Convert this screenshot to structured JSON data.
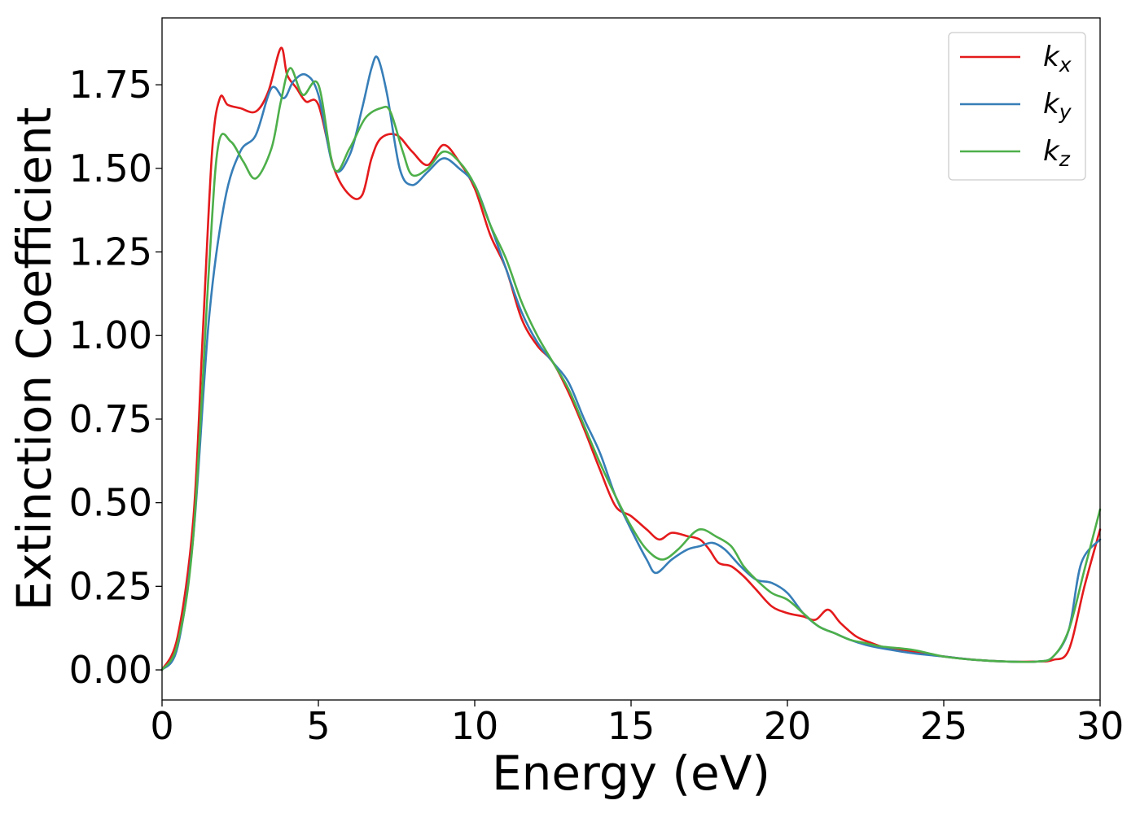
{
  "chart_data": {
    "type": "line",
    "xlabel": "Energy (eV)",
    "ylabel": "Extinction Coefficient",
    "xlim": [
      0,
      30
    ],
    "ylim": [
      -0.09,
      1.95
    ],
    "xticks": [
      0,
      5,
      10,
      15,
      20,
      25,
      30
    ],
    "xtick_labels": [
      "0",
      "5",
      "10",
      "15",
      "20",
      "25",
      "30"
    ],
    "yticks": [
      0.0,
      0.25,
      0.5,
      0.75,
      1.0,
      1.25,
      1.5,
      1.75
    ],
    "ytick_labels": [
      "0.00",
      "0.25",
      "0.50",
      "0.75",
      "1.00",
      "1.25",
      "1.50",
      "1.75"
    ],
    "grid": false,
    "legend_position": "top-right",
    "series": [
      {
        "name": "k_x",
        "label_base": "k",
        "label_sub": "x",
        "color": "#e41a1c",
        "x": [
          0,
          0.5,
          1.0,
          1.3,
          1.6,
          1.85,
          2.1,
          2.5,
          3.0,
          3.4,
          3.8,
          4.0,
          4.3,
          4.6,
          5.0,
          5.5,
          6.0,
          6.4,
          6.7,
          7.0,
          7.5,
          8.0,
          8.5,
          9.0,
          9.5,
          10.0,
          10.5,
          11.0,
          11.5,
          12.0,
          12.5,
          13.0,
          13.5,
          14.0,
          14.5,
          15.0,
          15.5,
          15.9,
          16.3,
          16.8,
          17.2,
          17.5,
          17.8,
          18.2,
          18.6,
          19.0,
          19.5,
          20.0,
          20.5,
          20.9,
          21.3,
          21.7,
          22.2,
          22.7,
          23.2,
          24.0,
          25.0,
          26.0,
          27.0,
          28.0,
          28.5,
          29.0,
          29.5,
          30.0
        ],
        "y": [
          0.0,
          0.1,
          0.45,
          1.0,
          1.55,
          1.71,
          1.69,
          1.68,
          1.67,
          1.73,
          1.86,
          1.78,
          1.74,
          1.7,
          1.69,
          1.5,
          1.42,
          1.42,
          1.53,
          1.59,
          1.6,
          1.55,
          1.51,
          1.57,
          1.52,
          1.44,
          1.3,
          1.2,
          1.05,
          0.97,
          0.92,
          0.83,
          0.72,
          0.6,
          0.49,
          0.46,
          0.42,
          0.39,
          0.41,
          0.4,
          0.39,
          0.36,
          0.32,
          0.31,
          0.28,
          0.24,
          0.19,
          0.17,
          0.16,
          0.15,
          0.18,
          0.14,
          0.1,
          0.08,
          0.065,
          0.055,
          0.04,
          0.03,
          0.025,
          0.025,
          0.03,
          0.06,
          0.25,
          0.42
        ]
      },
      {
        "name": "k_y",
        "label_base": "k",
        "label_sub": "y",
        "color": "#377eb8",
        "x": [
          0,
          0.5,
          1.0,
          1.5,
          2.0,
          2.5,
          3.0,
          3.5,
          3.9,
          4.2,
          4.6,
          5.0,
          5.5,
          6.0,
          6.4,
          6.7,
          6.9,
          7.2,
          7.6,
          8.0,
          8.5,
          9.0,
          9.5,
          10.0,
          10.5,
          11.0,
          11.5,
          12.0,
          12.5,
          13.0,
          13.5,
          14.0,
          14.5,
          15.0,
          15.5,
          15.8,
          16.3,
          16.8,
          17.2,
          17.6,
          18.0,
          18.5,
          19.0,
          19.5,
          20.0,
          20.5,
          21.0,
          21.5,
          22.0,
          22.5,
          23.0,
          24.0,
          25.0,
          26.0,
          27.0,
          28.0,
          28.5,
          29.0,
          29.4,
          30.0
        ],
        "y": [
          0.0,
          0.07,
          0.4,
          1.05,
          1.4,
          1.55,
          1.6,
          1.74,
          1.71,
          1.76,
          1.78,
          1.72,
          1.5,
          1.54,
          1.68,
          1.8,
          1.83,
          1.72,
          1.5,
          1.45,
          1.49,
          1.53,
          1.5,
          1.45,
          1.33,
          1.2,
          1.07,
          0.98,
          0.92,
          0.86,
          0.75,
          0.65,
          0.52,
          0.42,
          0.33,
          0.29,
          0.33,
          0.36,
          0.37,
          0.38,
          0.36,
          0.31,
          0.27,
          0.26,
          0.23,
          0.17,
          0.13,
          0.11,
          0.09,
          0.075,
          0.065,
          0.05,
          0.04,
          0.03,
          0.025,
          0.025,
          0.04,
          0.12,
          0.32,
          0.39
        ]
      },
      {
        "name": "k_z",
        "label_base": "k",
        "label_sub": "z",
        "color": "#4daf4a",
        "x": [
          0,
          0.5,
          1.0,
          1.5,
          1.8,
          2.2,
          2.6,
          3.0,
          3.5,
          3.8,
          4.1,
          4.5,
          5.0,
          5.5,
          6.0,
          6.5,
          7.0,
          7.3,
          7.7,
          8.0,
          8.5,
          9.0,
          9.5,
          10.0,
          10.5,
          11.0,
          11.5,
          12.0,
          12.5,
          13.0,
          13.5,
          14.0,
          14.5,
          15.0,
          15.5,
          16.0,
          16.5,
          17.0,
          17.3,
          17.7,
          18.2,
          18.6,
          19.0,
          19.5,
          20.0,
          20.5,
          21.0,
          21.5,
          22.0,
          22.5,
          23.0,
          24.0,
          25.0,
          26.0,
          27.0,
          28.0,
          28.5,
          29.0,
          29.5,
          30.0
        ],
        "y": [
          0.0,
          0.08,
          0.4,
          1.2,
          1.57,
          1.58,
          1.52,
          1.47,
          1.56,
          1.7,
          1.8,
          1.72,
          1.75,
          1.5,
          1.56,
          1.65,
          1.68,
          1.67,
          1.55,
          1.48,
          1.5,
          1.55,
          1.52,
          1.45,
          1.33,
          1.23,
          1.1,
          1.0,
          0.92,
          0.84,
          0.73,
          0.62,
          0.52,
          0.43,
          0.36,
          0.33,
          0.36,
          0.41,
          0.42,
          0.4,
          0.37,
          0.31,
          0.27,
          0.23,
          0.21,
          0.17,
          0.13,
          0.11,
          0.09,
          0.08,
          0.07,
          0.06,
          0.04,
          0.03,
          0.025,
          0.025,
          0.04,
          0.12,
          0.3,
          0.48
        ]
      }
    ]
  }
}
